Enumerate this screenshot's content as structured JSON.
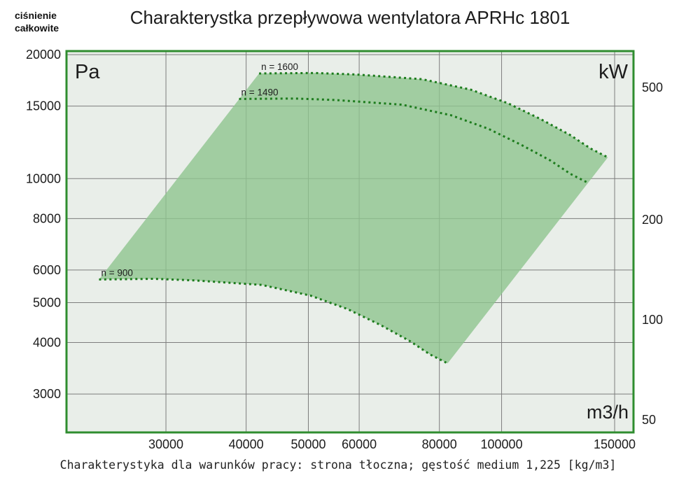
{
  "chart_data": {
    "type": "area",
    "title": "Charakterystka przepływowa wentylatora APRHc 1801",
    "caption": "Charakterystyka dla warunków pracy: strona tłoczna; gęstość medium 1,225 [kg/m3]",
    "x_axis": {
      "unit": "m3/h",
      "scale": "log",
      "min": 21000,
      "max": 160500,
      "ticks": [
        30000,
        40000,
        50000,
        60000,
        80000,
        100000,
        150000
      ]
    },
    "y_axis_left": {
      "unit": "Pa",
      "title_line1": "ciśnienie",
      "title_line2": "całkowite",
      "scale": "log",
      "min": 2420,
      "max": 20400,
      "ticks": [
        20000,
        15000,
        10000,
        8000,
        6000,
        5000,
        4000,
        3000
      ]
    },
    "y_axis_right": {
      "unit": "kW",
      "scale": "log",
      "min": 45.8,
      "max": 643,
      "ticks": [
        500,
        200,
        100,
        50
      ]
    },
    "series": [
      {
        "name": "n = 1600",
        "rpm": 1600,
        "points": [
          [
            41900,
            18000
          ],
          [
            51200,
            18050
          ],
          [
            59200,
            17900
          ],
          [
            75200,
            17430
          ],
          [
            89600,
            16440
          ],
          [
            102400,
            15230
          ],
          [
            115200,
            13930
          ],
          [
            128000,
            12750
          ],
          [
            137600,
            11830
          ],
          [
            146400,
            11260
          ]
        ]
      },
      {
        "name": "n = 1490",
        "rpm": 1490,
        "points": [
          [
            39000,
            15610
          ],
          [
            47700,
            15650
          ],
          [
            55100,
            15520
          ],
          [
            70000,
            15120
          ],
          [
            83400,
            14250
          ],
          [
            95400,
            13210
          ],
          [
            107300,
            12080
          ],
          [
            119200,
            11060
          ],
          [
            128100,
            10260
          ],
          [
            136300,
            9770
          ]
        ]
      },
      {
        "name": "n = 900",
        "rpm": 900,
        "points": [
          [
            23600,
            5690
          ],
          [
            28800,
            5710
          ],
          [
            33300,
            5660
          ],
          [
            42300,
            5520
          ],
          [
            50400,
            5200
          ],
          [
            57600,
            4820
          ],
          [
            64800,
            4410
          ],
          [
            72000,
            4030
          ],
          [
            77400,
            3740
          ],
          [
            82400,
            3560
          ]
        ]
      }
    ],
    "region_between": [
      0,
      2
    ],
    "colors": {
      "curve": "#1d7c1d",
      "region_fill": "#8fc48f",
      "region_opacity": 0.8,
      "plot_bg": "#e9eee9",
      "frame": "#2f8d2f",
      "grid": "#7d7d7d",
      "text": "#1c1c1c"
    }
  }
}
